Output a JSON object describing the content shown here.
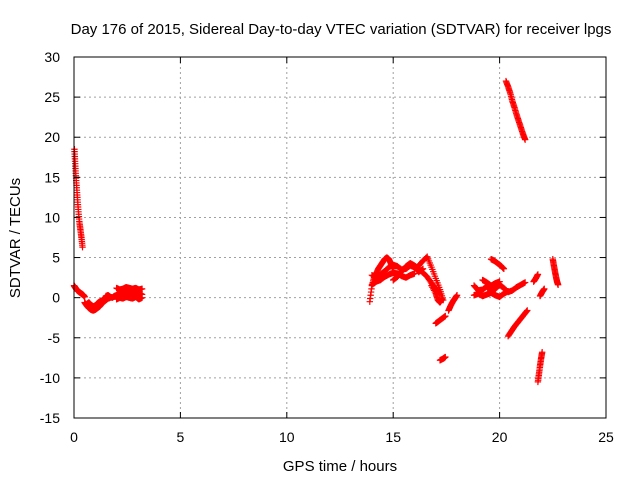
{
  "chart_data": {
    "type": "scatter",
    "title": "Day 176 of 2015, Sidereal Day-to-day VTEC variation (SDTVAR) for receiver lpgs",
    "xlabel": "GPS time / hours",
    "ylabel": "SDTVAR / TECUs",
    "xlim": [
      0,
      25
    ],
    "ylim": [
      -15,
      30
    ],
    "xticks": [
      "0",
      "5",
      "10",
      "15",
      "20",
      "25"
    ],
    "yticks": [
      "-15",
      "-10",
      "-5",
      "0",
      "5",
      "10",
      "15",
      "20",
      "25",
      "30"
    ],
    "grid": true,
    "legend": "none",
    "marker": "plus",
    "color": "#ff0000",
    "segments": [
      {
        "x": [
          0.02,
          0.05,
          0.08,
          0.12,
          0.16,
          0.2,
          0.25,
          0.3,
          0.35,
          0.4
        ],
        "y": [
          18.5,
          17.0,
          15.5,
          14.0,
          12.5,
          11.0,
          9.5,
          8.5,
          7.5,
          6.3
        ]
      },
      {
        "x": [
          0.0,
          0.05,
          0.1,
          0.15,
          0.2,
          0.25,
          0.3,
          0.35,
          0.4,
          0.45,
          0.5
        ],
        "y": [
          1.5,
          1.3,
          1.1,
          0.9,
          0.8,
          0.7,
          0.6,
          0.5,
          0.4,
          0.3,
          0.1
        ]
      },
      {
        "x": [
          0.5,
          0.6,
          0.7,
          0.8,
          0.9,
          1.0,
          1.1,
          1.2,
          1.3,
          1.4,
          1.5,
          1.6,
          1.7
        ],
        "y": [
          -0.6,
          -1.0,
          -1.3,
          -1.5,
          -1.6,
          -1.5,
          -1.3,
          -1.1,
          -0.8,
          -0.5,
          -0.3,
          -0.1,
          0.0
        ]
      },
      {
        "x": [
          0.6,
          0.7,
          0.8,
          0.9,
          1.0,
          1.1,
          1.2,
          1.3,
          1.4,
          1.5
        ],
        "y": [
          -0.8,
          -0.6,
          -0.9,
          -1.1,
          -1.0,
          -0.7,
          -0.5,
          -0.4,
          -0.2,
          0.1
        ]
      },
      {
        "x": [
          1.5,
          1.6,
          1.7,
          1.8,
          1.9,
          2.0
        ],
        "y": [
          0.2,
          0.3,
          0.1,
          0.0,
          0.2,
          0.3
        ]
      },
      {
        "x": [
          2.0,
          2.15,
          2.3,
          2.45,
          2.6,
          2.75,
          2.9,
          3.05,
          3.2
        ],
        "y": [
          1.2,
          1.0,
          1.1,
          1.3,
          1.2,
          1.1,
          1.2,
          1.0,
          1.1
        ]
      },
      {
        "x": [
          2.0,
          2.15,
          2.3,
          2.45,
          2.6,
          2.75,
          2.9,
          3.05,
          3.2
        ],
        "y": [
          0.3,
          0.6,
          0.4,
          0.5,
          0.7,
          0.3,
          0.5,
          0.6,
          0.4
        ]
      },
      {
        "x": [
          2.0,
          2.15,
          2.3,
          2.45,
          2.6,
          2.75,
          2.9,
          3.05,
          3.2
        ],
        "y": [
          -0.2,
          0.0,
          -0.1,
          0.1,
          0.0,
          -0.1,
          0.1,
          -0.2,
          0.0
        ]
      },
      {
        "x": [
          13.9,
          14.0,
          14.1,
          14.2,
          14.3,
          14.4,
          14.5,
          14.6,
          14.7,
          14.8,
          14.9,
          15.0
        ],
        "y": [
          -0.5,
          1.5,
          2.5,
          3.0,
          3.6,
          4.0,
          4.4,
          4.8,
          5.0,
          4.8,
          4.2,
          3.6
        ]
      },
      {
        "x": [
          14.0,
          14.2,
          14.4,
          14.6,
          14.8,
          15.0,
          15.2,
          15.4,
          15.6,
          15.8,
          16.0,
          16.2,
          16.4
        ],
        "y": [
          2.8,
          2.5,
          2.9,
          3.3,
          3.8,
          4.1,
          3.9,
          3.5,
          3.6,
          4.0,
          3.8,
          3.2,
          3.6
        ]
      },
      {
        "x": [
          14.0,
          14.2,
          14.4,
          14.6,
          14.8,
          15.0,
          15.2,
          15.4,
          15.6,
          15.8,
          16.0
        ],
        "y": [
          1.6,
          2.0,
          2.2,
          2.6,
          2.9,
          3.1,
          3.0,
          2.7,
          2.5,
          2.8,
          3.0
        ]
      },
      {
        "x": [
          15.0,
          15.2,
          15.4,
          15.6,
          15.8,
          16.0,
          16.2,
          16.4,
          16.6,
          16.8,
          17.0,
          17.2
        ],
        "y": [
          2.2,
          2.6,
          3.3,
          3.9,
          4.3,
          4.0,
          3.6,
          3.1,
          2.6,
          1.8,
          1.1,
          0.4
        ]
      },
      {
        "x": [
          16.2,
          16.4,
          16.6,
          16.8,
          17.0,
          17.2,
          17.35
        ],
        "y": [
          4.0,
          4.6,
          5.1,
          3.8,
          2.4,
          1.0,
          -0.3
        ]
      },
      {
        "x": [
          16.8,
          17.0,
          17.1,
          17.2,
          17.3
        ],
        "y": [
          1.5,
          0.5,
          -0.3,
          -0.6,
          -0.2
        ]
      },
      {
        "x": [
          17.0,
          17.15,
          17.3,
          17.45
        ],
        "y": [
          -3.2,
          -2.9,
          -2.6,
          -2.3
        ]
      },
      {
        "x": [
          17.2,
          17.35,
          17.45
        ],
        "y": [
          -7.8,
          -7.6,
          -7.4
        ]
      },
      {
        "x": [
          17.6,
          17.7,
          17.8,
          17.9,
          18.0
        ],
        "y": [
          -1.6,
          -1.0,
          -0.5,
          -0.1,
          0.3
        ]
      },
      {
        "x": [
          18.8,
          19.0,
          19.2,
          19.4,
          19.6,
          19.8,
          20.0,
          20.2,
          20.4,
          20.6,
          20.8,
          21.0,
          21.2
        ],
        "y": [
          1.5,
          0.9,
          1.0,
          1.4,
          0.8,
          1.1,
          1.6,
          1.2,
          0.7,
          0.9,
          1.3,
          1.6,
          1.9
        ]
      },
      {
        "x": [
          18.8,
          19.0,
          19.2,
          19.4,
          19.6,
          19.8,
          20.0,
          20.2,
          20.4
        ],
        "y": [
          0.3,
          0.5,
          0.2,
          0.4,
          0.6,
          0.3,
          0.1,
          0.5,
          0.8
        ]
      },
      {
        "x": [
          19.2,
          19.4,
          19.6,
          19.8,
          20.0
        ],
        "y": [
          2.2,
          1.9,
          1.5,
          1.8,
          2.0
        ]
      },
      {
        "x": [
          19.6,
          19.75,
          19.9,
          20.05,
          20.2
        ],
        "y": [
          4.8,
          4.6,
          4.3,
          4.0,
          3.6
        ]
      },
      {
        "x": [
          20.3,
          20.4,
          20.5,
          20.6,
          20.7,
          20.8,
          20.9,
          21.0,
          21.1,
          21.2
        ],
        "y": [
          27.0,
          26.3,
          25.5,
          24.5,
          23.7,
          22.8,
          22.0,
          21.2,
          20.4,
          19.7
        ]
      },
      {
        "x": [
          20.4,
          20.55,
          20.7,
          20.85,
          21.0,
          21.15,
          21.3
        ],
        "y": [
          -4.8,
          -4.2,
          -3.6,
          -3.1,
          -2.6,
          -2.1,
          -1.6
        ]
      },
      {
        "x": [
          21.6,
          21.7,
          21.8
        ],
        "y": [
          2.0,
          2.4,
          2.9
        ]
      },
      {
        "x": [
          21.8,
          21.85,
          21.9,
          21.95,
          22.0
        ],
        "y": [
          -10.5,
          -9.5,
          -8.5,
          -7.6,
          -6.8
        ]
      },
      {
        "x": [
          21.9,
          22.0,
          22.1
        ],
        "y": [
          0.2,
          0.7,
          1.1
        ]
      },
      {
        "x": [
          22.5,
          22.55,
          22.6,
          22.65,
          22.7,
          22.75
        ],
        "y": [
          4.8,
          4.0,
          3.3,
          2.6,
          2.0,
          1.6
        ]
      }
    ]
  }
}
